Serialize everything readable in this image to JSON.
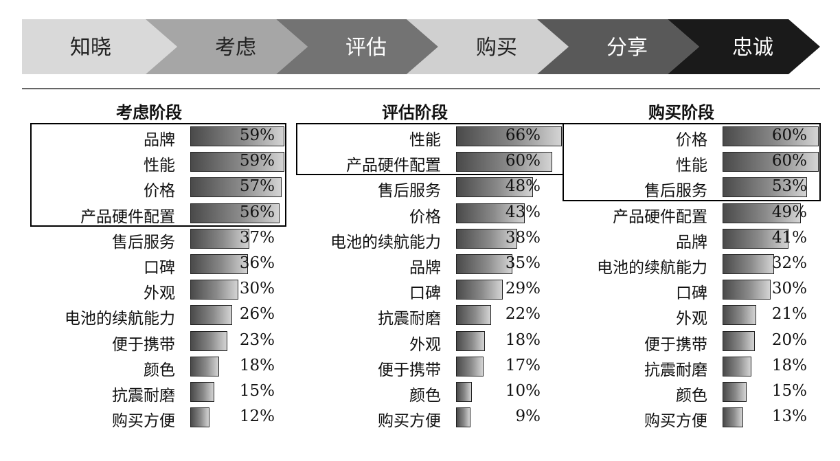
{
  "stages": [
    {
      "label": "知晓",
      "fill": "#d9d9d9",
      "text_color": "#222222"
    },
    {
      "label": "考虑",
      "fill": "#a6a6a6",
      "text_color": "#222222"
    },
    {
      "label": "评估",
      "fill": "#737373",
      "text_color": "#ffffff"
    },
    {
      "label": "购买",
      "fill": "#d0d0d0",
      "text_color": "#222222"
    },
    {
      "label": "分享",
      "fill": "#595959",
      "text_color": "#ffffff"
    },
    {
      "label": "忠诚",
      "fill": "#1a1a1a",
      "text_color": "#ffffff"
    }
  ],
  "chart_data": [
    {
      "type": "bar",
      "title": "考虑阶段",
      "boxed_count": 4,
      "categories": [
        "品牌",
        "性能",
        "价格",
        "产品硬件配置",
        "售后服务",
        "口碑",
        "外观",
        "电池的续航能力",
        "便于携带",
        "颜色",
        "抗震耐磨",
        "购买方便"
      ],
      "values": [
        59,
        59,
        57,
        56,
        37,
        36,
        30,
        26,
        23,
        18,
        15,
        12
      ],
      "value_labels": [
        "59%",
        "59%",
        "57%",
        "56%",
        "37%",
        "36%",
        "30%",
        "26%",
        "23%",
        "18%",
        "15%",
        "12%"
      ]
    },
    {
      "type": "bar",
      "title": "评估阶段",
      "boxed_count": 2,
      "categories": [
        "性能",
        "产品硬件配置",
        "售后服务",
        "价格",
        "电池的续航能力",
        "品牌",
        "口碑",
        "抗震耐磨",
        "外观",
        "便于携带",
        "颜色",
        "购买方便"
      ],
      "values": [
        66,
        60,
        48,
        43,
        38,
        35,
        29,
        22,
        18,
        17,
        10,
        9
      ],
      "value_labels": [
        "66%",
        "60%",
        "48%",
        "43%",
        "38%",
        "35%",
        "29%",
        "22%",
        "18%",
        "17%",
        "10%",
        "9%"
      ]
    },
    {
      "type": "bar",
      "title": "购买阶段",
      "boxed_count": 3,
      "categories": [
        "价格",
        "性能",
        "售后服务",
        "产品硬件配置",
        "品牌",
        "电池的续航能力",
        "口碑",
        "外观",
        "便于携带",
        "抗震耐磨",
        "颜色",
        "购买方便"
      ],
      "values": [
        60,
        60,
        53,
        49,
        41,
        32,
        30,
        21,
        20,
        18,
        15,
        13
      ],
      "value_labels": [
        "60%",
        "60%",
        "53%",
        "49%",
        "41%",
        "32%",
        "30%",
        "21%",
        "20%",
        "18%",
        "15%",
        "13%"
      ]
    }
  ]
}
